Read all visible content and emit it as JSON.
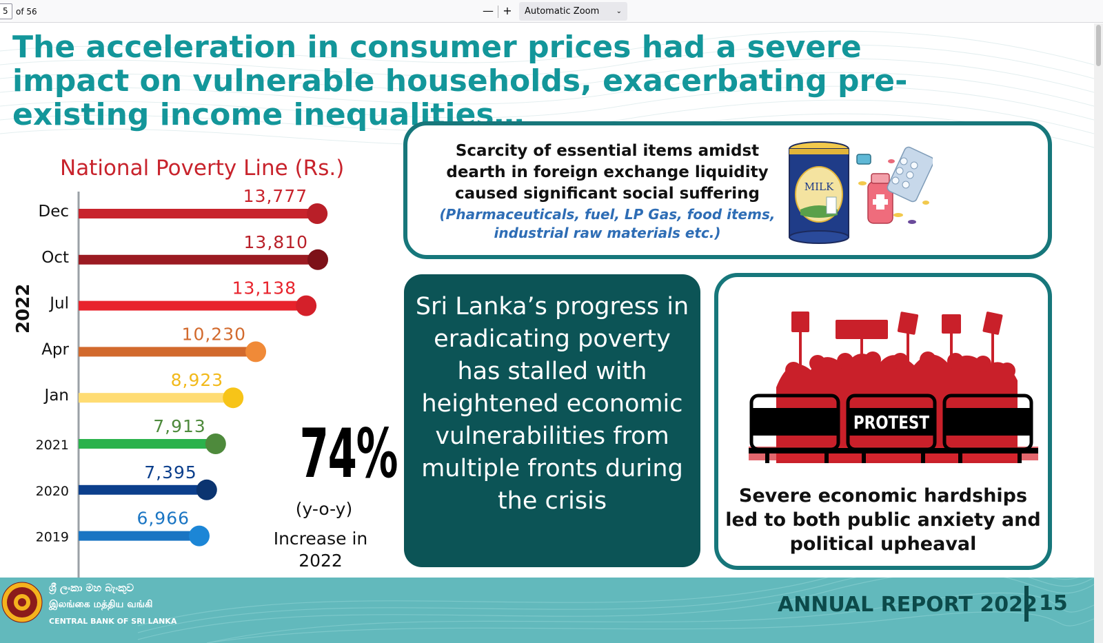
{
  "viewer": {
    "page_number": "5",
    "page_of": "of 56",
    "zoom_out": "—",
    "zoom_in": "+",
    "zoom_label": "Automatic Zoom",
    "zoom_chevron": "⌄"
  },
  "headline": "The acceleration in consumer prices had a severe impact on vulnerable households, exacerbating pre-existing income inequalities…",
  "chart_data": {
    "type": "bar",
    "title": "National Poverty Line (Rs.)",
    "group_label": "2022",
    "categories": [
      "Dec",
      "Oct",
      "Jul",
      "Apr",
      "Jan",
      "2021",
      "2020",
      "2019"
    ],
    "values": [
      13777,
      13810,
      13138,
      10230,
      8923,
      7913,
      7395,
      6966
    ],
    "value_labels": [
      "13,777",
      "13,810",
      "13,138",
      "10,230",
      "8,923",
      "7,913",
      "7,395",
      "6,966"
    ],
    "bar_colors": [
      "#c8232c",
      "#9b1b22",
      "#e8232c",
      "#d26a2d",
      "#ffdc73",
      "#2bb24c",
      "#0c3f8c",
      "#1a75c3"
    ],
    "dot_colors": [
      "#b91f28",
      "#7d1118",
      "#d4202a",
      "#f08a38",
      "#f7c418",
      "#4e8a3c",
      "#0b3470",
      "#1c86d6"
    ],
    "label_colors": [
      "#c8232c",
      "#b91f28",
      "#e8232c",
      "#d26a2d",
      "#f2b91a",
      "#4e8a3c",
      "#0c3f8c",
      "#1a75c3"
    ]
  },
  "stat": {
    "percent": "74%",
    "yoy": "(y-o-y)",
    "increase": "Increase in 2022"
  },
  "scarcity": {
    "text": "Scarcity of essential items amidst dearth in foreign exchange liquidity caused significant social suffering",
    "sub": "(Pharmaceuticals, fuel, LP Gas, food items, industrial raw materials etc.)",
    "milk_label": "MILK"
  },
  "progress_text": "Sri Lanka’s progress in eradicating poverty has stalled with heightened economic vulnerabilities from multiple fronts during the crisis",
  "protest": {
    "sign": "PROTEST",
    "text": "Severe economic hardships led to both public anxiety and political upheaval"
  },
  "footer": {
    "bank_si": "ශ්‍රී ලංකා මහ බැංකුව",
    "bank_ta": "இலங்கை மத்திய வங்கி",
    "bank_en": "CENTRAL BANK OF SRI LANKA",
    "annual": "ANNUAL REPORT 2022",
    "page": "15"
  },
  "colors": {
    "teal_title": "#13969a",
    "box_border": "#17777b",
    "mid_box": "#0c5456",
    "footer": "#62b9bc",
    "poverty_title": "#c8232c"
  }
}
